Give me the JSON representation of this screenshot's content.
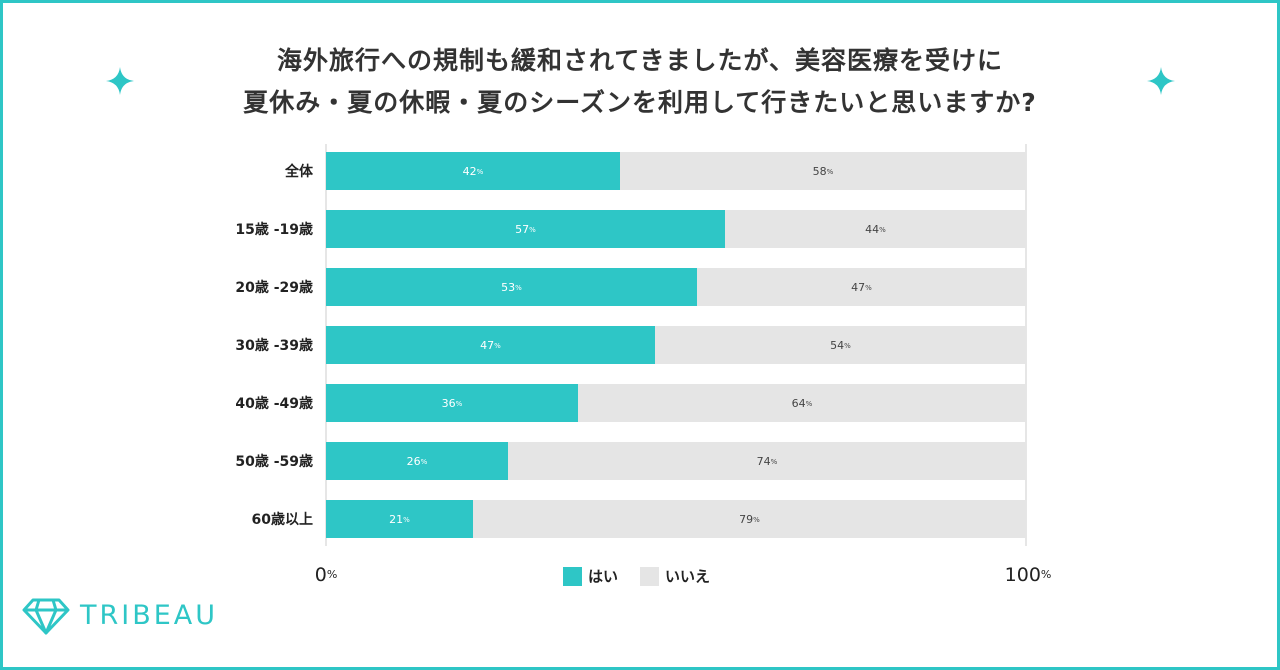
{
  "title": {
    "line1": "海外旅行への規制も緩和されてきましたが、美容医療を受けに",
    "line2": "夏休み・夏の休暇・夏のシーズンを利用して行きたいと思いますか?"
  },
  "chart_data": {
    "type": "bar",
    "orientation": "horizontal",
    "stacked": true,
    "categories": [
      "全体",
      "15歳 -19歳",
      "20歳 -29歳",
      "30歳 -39歳",
      "40歳 -49歳",
      "50歳 -59歳",
      "60歳以上"
    ],
    "series": [
      {
        "name": "はい",
        "color": "#2ec6c6",
        "values": [
          42,
          57,
          53,
          47,
          36,
          26,
          21
        ]
      },
      {
        "name": "いいえ",
        "color": "#e5e5e5",
        "values": [
          58,
          44,
          47,
          54,
          64,
          74,
          79
        ]
      }
    ],
    "value_suffix": "%",
    "axis": {
      "min_label": "0",
      "max_label": "100",
      "unit": "%"
    },
    "xlim": [
      0,
      100
    ],
    "legend": "bottom-center"
  },
  "brand": {
    "name": "TRIBEAU",
    "color": "#2ec6c6",
    "logo_icon": "diamond-icon"
  },
  "decorations": {
    "sparkle_icon": "sparkle-icon"
  }
}
